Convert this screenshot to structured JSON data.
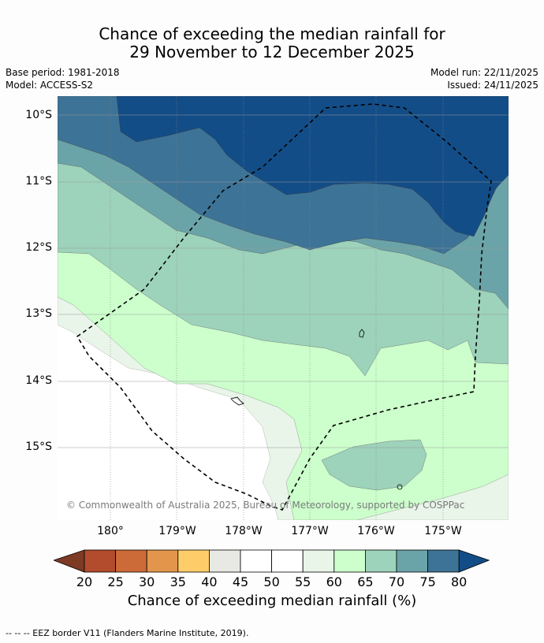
{
  "title_line1": "Chance of exceeding the median rainfall for",
  "title_line2": "29 November to 12 December 2025",
  "base_period": "Base period: 1981-2018",
  "model": "Model: ACCESS-S2",
  "model_run": "Model run: 22/11/2025",
  "issued": "Issued: 24/11/2025",
  "lat_labels": [
    "10°S",
    "11°S",
    "12°S",
    "13°S",
    "14°S",
    "15°S"
  ],
  "lon_labels": [
    "180°",
    "179°W",
    "178°W",
    "177°W",
    "176°W",
    "175°W"
  ],
  "copyright": "© Commonwealth of Australia 2025, Bureau of Meteorology, supported by COSPPac",
  "colorbar_ticks": [
    "20",
    "25",
    "30",
    "35",
    "40",
    "45",
    "50",
    "55",
    "60",
    "65",
    "70",
    "75",
    "80"
  ],
  "colorbar_colors": [
    "#7d3a24",
    "#b24c2c",
    "#cc6a38",
    "#e3964b",
    "#fecd6a",
    "#e8e8e4",
    "#ffffff",
    "#ffffff",
    "#e8f5e8",
    "#ccffcc",
    "#9dd2bb",
    "#6ba4a8",
    "#3d7396",
    "#134d87"
  ],
  "colorbar_title": "Chance of exceeding median rainfall (%)",
  "footer": "--  --  -- EEZ border V11 (Flanders Marine Institute, 2019).",
  "icons": [
    "island-outline-icon"
  ]
}
